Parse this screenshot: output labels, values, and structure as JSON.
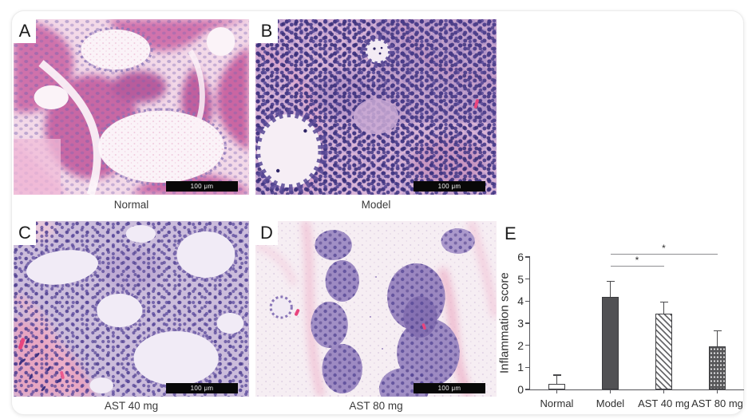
{
  "figure": {
    "panels": [
      {
        "id": "A",
        "label": "A",
        "caption": "Normal",
        "scale_label": "100 μm"
      },
      {
        "id": "B",
        "label": "B",
        "caption": "Model",
        "scale_label": "100 μm"
      },
      {
        "id": "C",
        "label": "C",
        "caption": "AST 40 mg",
        "scale_label": "100 μm"
      },
      {
        "id": "D",
        "label": "D",
        "caption": "AST 80 mg",
        "scale_label": "100 μm"
      },
      {
        "id": "E",
        "label": "E"
      }
    ],
    "palette": {
      "hematoxylin_purple": "#41317e",
      "eosin_pink": "#d06fa9",
      "bar_dark_gray": "#515154",
      "axis_gray": "#55555a"
    }
  },
  "chart_data": {
    "type": "bar",
    "categories": [
      "Normal",
      "Model",
      "AST 40 mg",
      "AST 80 mg"
    ],
    "values": [
      0.25,
      4.2,
      3.45,
      1.95
    ],
    "errors_plus": [
      0.4,
      0.7,
      0.5,
      0.7
    ],
    "ylabel": "Inflammation score",
    "xlabel": "",
    "ylim": [
      0,
      6
    ],
    "yticks": [
      0,
      1,
      2,
      3,
      4,
      5,
      6
    ],
    "bar_styles": [
      "outline",
      "solid",
      "hatch",
      "stipple"
    ],
    "grid": false,
    "legend": "none",
    "significance": [
      {
        "between": [
          "Model",
          "AST 40 mg"
        ],
        "label": "*",
        "y": 5.6
      },
      {
        "between": [
          "Model",
          "AST 80 mg"
        ],
        "label": "*",
        "y": 6.15
      }
    ]
  }
}
